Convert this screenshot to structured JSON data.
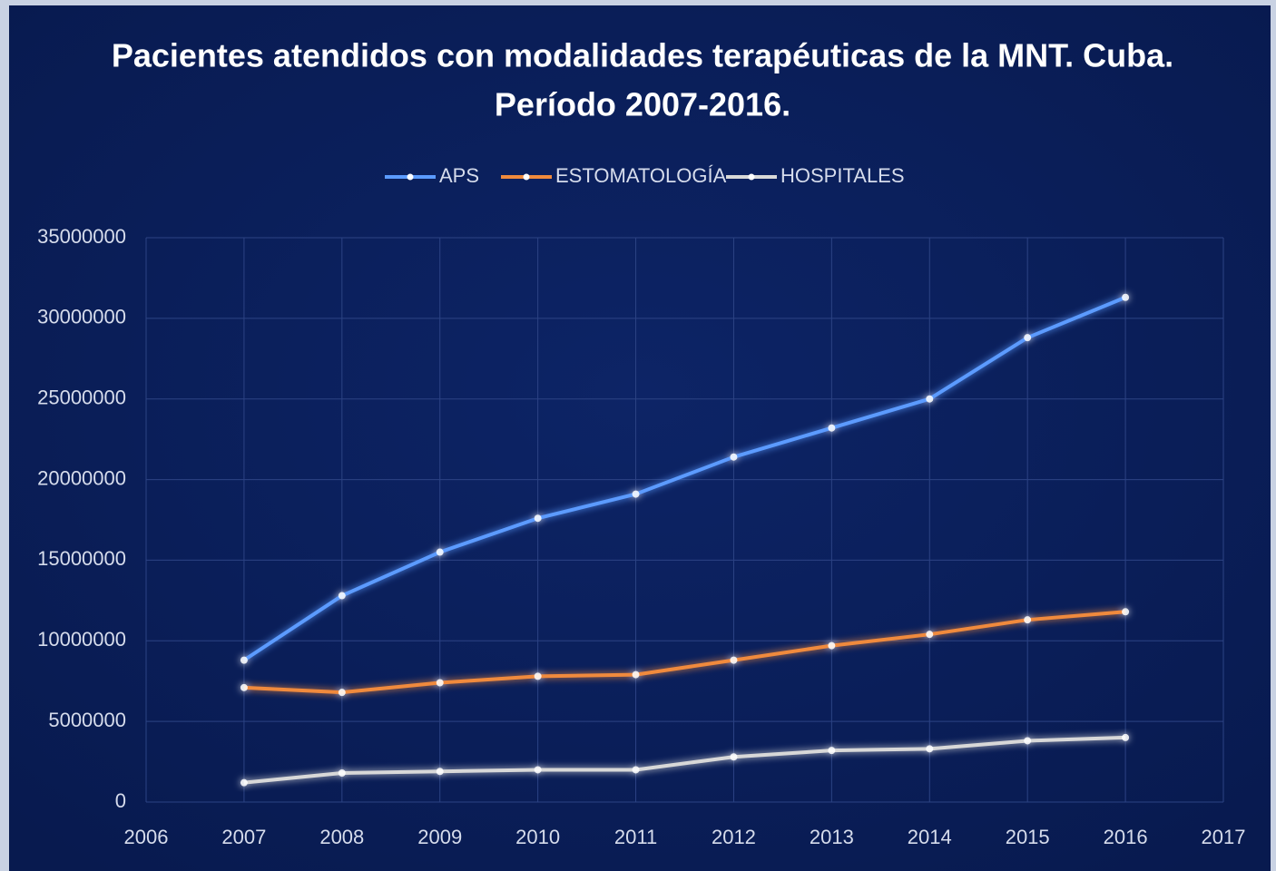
{
  "chart_data": {
    "type": "line",
    "title": "Pacientes atendidos con modalidades terapéuticas de la MNT. Cuba.",
    "subtitle": "Período 2007-2016.",
    "x": [
      2007,
      2008,
      2009,
      2010,
      2011,
      2012,
      2013,
      2014,
      2015,
      2016
    ],
    "series": [
      {
        "name": "APS",
        "color": "#5b9bff",
        "values": [
          8800000,
          12800000,
          15500000,
          17600000,
          19100000,
          21400000,
          23200000,
          25000000,
          28800000,
          31300000
        ]
      },
      {
        "name": "ESTOMATOLOGÍA",
        "color": "#f08a3c",
        "values": [
          7100000,
          6800000,
          7400000,
          7800000,
          7900000,
          8800000,
          9700000,
          10400000,
          11300000,
          11800000
        ]
      },
      {
        "name": "HOSPITALES",
        "color": "#d8d8d8",
        "values": [
          1200000,
          1800000,
          1900000,
          2000000,
          2000000,
          2800000,
          3200000,
          3300000,
          3800000,
          4000000
        ]
      }
    ],
    "xlim": [
      2006,
      2017
    ],
    "xticks": [
      2006,
      2007,
      2008,
      2009,
      2010,
      2011,
      2012,
      2013,
      2014,
      2015,
      2016,
      2017
    ],
    "ylim": [
      0,
      35000000
    ],
    "yticks": [
      0,
      5000000,
      10000000,
      15000000,
      20000000,
      25000000,
      30000000,
      35000000
    ],
    "grid": true,
    "legend": "top"
  }
}
